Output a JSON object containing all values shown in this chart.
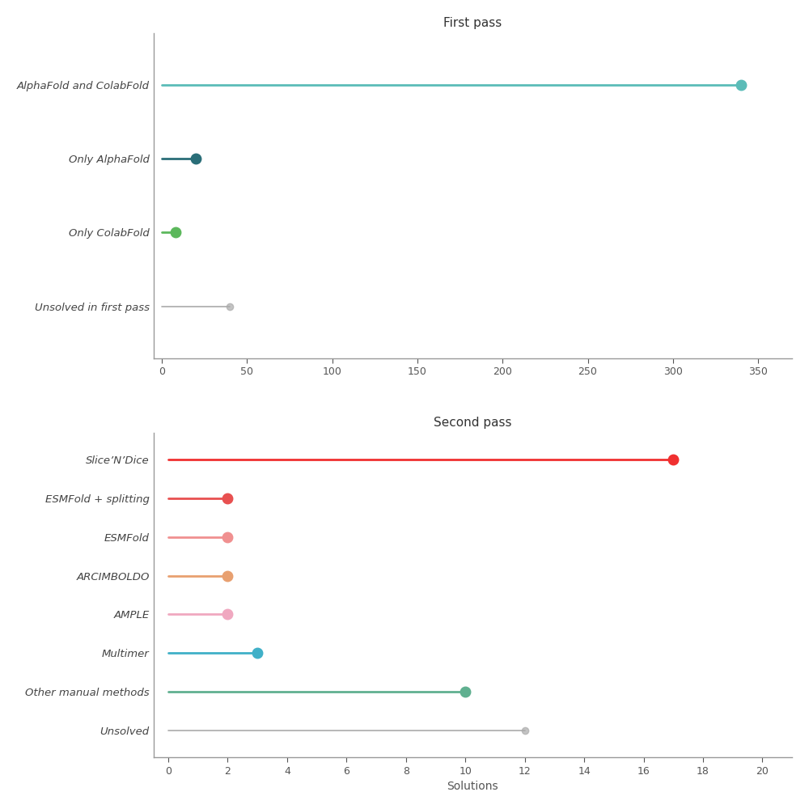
{
  "first_pass": {
    "title": "First pass",
    "categories": [
      "AlphaFold and ColabFold",
      "Only AlphaFold",
      "Only ColabFold",
      "Unsolved in first pass"
    ],
    "values": [
      340,
      20,
      8,
      40
    ],
    "colors": [
      "#5bbcb8",
      "#2a6e78",
      "#5cb85c",
      "#aaaaaa"
    ],
    "unsolved_idx": 3,
    "xlim": [
      -5,
      370
    ],
    "xticks": [
      0,
      50,
      100,
      150,
      200,
      250,
      300,
      350
    ]
  },
  "second_pass": {
    "title": "Second pass",
    "xlabel": "Solutions",
    "categories": [
      "Slice’N’Dice",
      "ESMFold + splitting",
      "ESMFold",
      "ARCIMBOLDO",
      "AMPLE",
      "Multimer",
      "Other manual methods",
      "Unsolved"
    ],
    "values": [
      17,
      2,
      2,
      2,
      2,
      3,
      10,
      12
    ],
    "colors": [
      "#f03030",
      "#e85050",
      "#f09090",
      "#e8a070",
      "#f0a8c0",
      "#40b0c8",
      "#60b090",
      "#aaaaaa"
    ],
    "unsolved_idx": 7,
    "xlim": [
      -0.5,
      21
    ],
    "xticks": [
      0,
      2,
      4,
      6,
      8,
      10,
      12,
      14,
      16,
      18,
      20
    ]
  },
  "bg_color": "#ffffff",
  "fig_bg_color": "#ffffff"
}
